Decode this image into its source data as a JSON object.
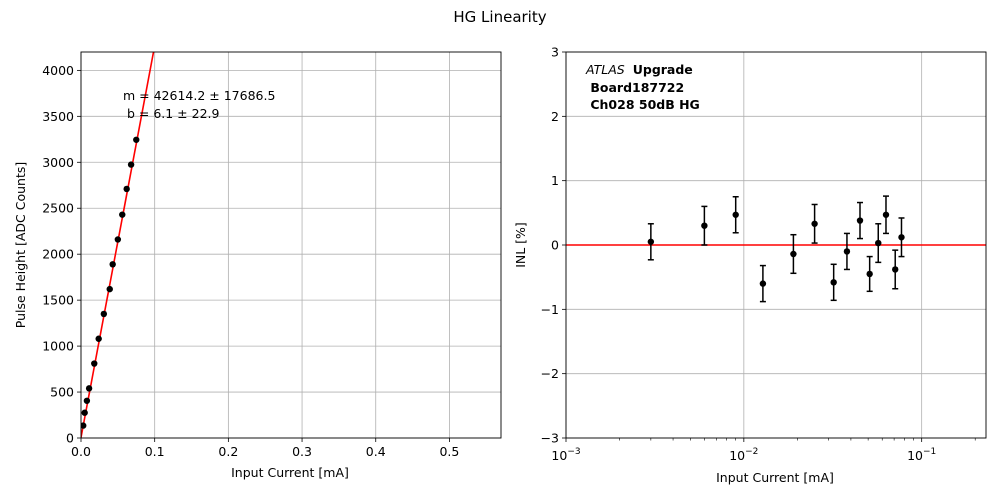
{
  "suptitle": "HG Linearity",
  "colors": {
    "fit": "#ff0000",
    "points": "#000000",
    "grid": "#b0b0b0"
  },
  "chart_data": [
    {
      "type": "scatter",
      "xlabel": "Input Current [mA]",
      "ylabel": "Pulse Height [ADC Counts]",
      "xlim": [
        0,
        0.57
      ],
      "ylim": [
        0,
        4200
      ],
      "xticks": [
        0.0,
        0.1,
        0.2,
        0.3,
        0.4,
        0.5
      ],
      "xtick_labels": [
        "0.0",
        "0.1",
        "0.2",
        "0.3",
        "0.4",
        "0.5"
      ],
      "yticks": [
        0,
        500,
        1000,
        1500,
        2000,
        2500,
        3000,
        3500,
        4000
      ],
      "ytick_labels": [
        "0",
        "500",
        "1000",
        "1500",
        "2000",
        "2500",
        "3000",
        "3500",
        "4000"
      ],
      "grid": true,
      "fit_line": {
        "slope": 42614.2,
        "intercept": 6.1
      },
      "annotation_lines": [
        "m = 42614.2 ± 17686.5",
        " b = 6.1 ± 22.9"
      ],
      "x": [
        0.003,
        0.005,
        0.008,
        0.011,
        0.018,
        0.024,
        0.031,
        0.039,
        0.043,
        0.05,
        0.056,
        0.062,
        0.068,
        0.075
      ],
      "y": [
        135,
        275,
        405,
        540,
        810,
        1080,
        1350,
        1620,
        1890,
        2160,
        2430,
        2710,
        2975,
        3245
      ]
    },
    {
      "type": "scatter",
      "xlabel": "Input Current [mA]",
      "ylabel": "INL [%]",
      "xscale": "log",
      "xlim": [
        0.001,
        0.23
      ],
      "ylim": [
        -3,
        3
      ],
      "xticks": [
        0.001,
        0.01,
        0.1
      ],
      "xtick_labels": [
        {
          "base": "10",
          "exp": "−3"
        },
        {
          "base": "10",
          "exp": "−2"
        },
        {
          "base": "10",
          "exp": "−1"
        }
      ],
      "yticks": [
        -3,
        -2,
        -1,
        0,
        1,
        2,
        3
      ],
      "ytick_labels": [
        "−3",
        "−2",
        "−1",
        "0",
        "1",
        "2",
        "3"
      ],
      "grid": true,
      "reference_line": 0,
      "annotation": {
        "italic": "ATLAS",
        "bold": "Upgrade",
        "lines": [
          " Board187722",
          " Ch028 50dB HG"
        ]
      },
      "x": [
        0.003,
        0.006,
        0.009,
        0.0128,
        0.019,
        0.025,
        0.032,
        0.038,
        0.045,
        0.051,
        0.057,
        0.063,
        0.071,
        0.077
      ],
      "y": [
        0.05,
        0.3,
        0.47,
        -0.6,
        -0.14,
        0.33,
        -0.58,
        -0.1,
        0.38,
        -0.45,
        0.03,
        0.47,
        -0.38,
        0.12
      ],
      "yerr": [
        0.28,
        0.3,
        0.28,
        0.28,
        0.3,
        0.3,
        0.28,
        0.28,
        0.28,
        0.27,
        0.3,
        0.29,
        0.3,
        0.3
      ]
    }
  ]
}
